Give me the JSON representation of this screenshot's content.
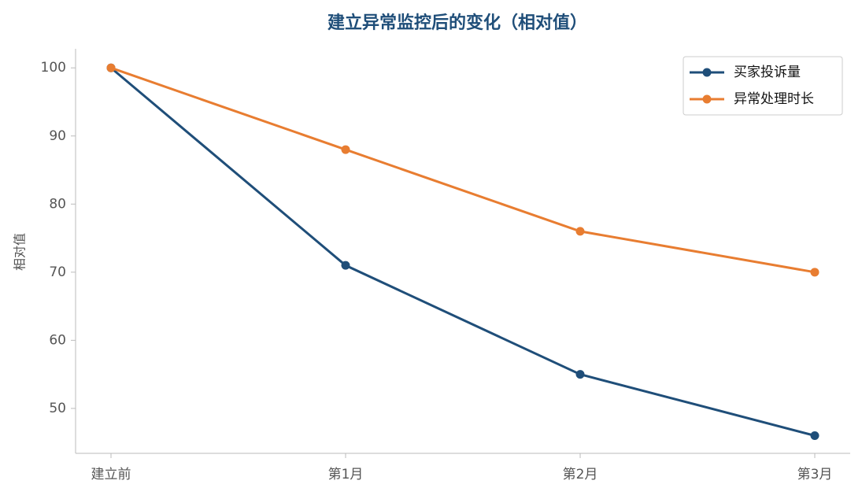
{
  "chart_data": {
    "type": "line",
    "title": "建立异常监控后的变化（相对值）",
    "y_label": "相对值",
    "categories": [
      "建立前",
      "第1月",
      "第2月",
      "第3月"
    ],
    "series": [
      {
        "name": "买家投诉量",
        "color": "#1f4e79",
        "values": [
          100,
          71,
          55,
          46
        ]
      },
      {
        "name": "异常处理时长",
        "color": "#e87d31",
        "values": [
          100,
          88,
          76,
          70
        ]
      }
    ],
    "ylim": [
      43.4,
      102.8
    ],
    "yticks": [
      50,
      60,
      70,
      80,
      90,
      100
    ],
    "legend": "upper right"
  }
}
